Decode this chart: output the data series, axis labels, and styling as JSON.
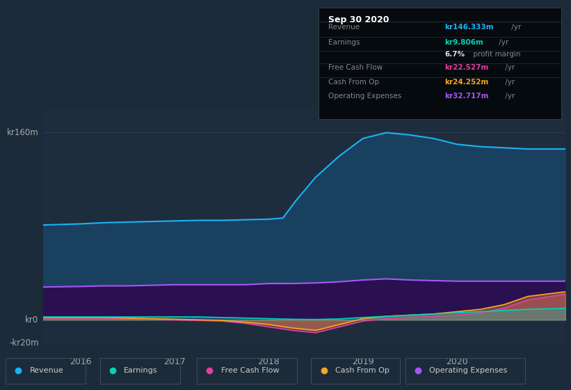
{
  "background_color": "#1c2b3a",
  "plot_bg_color": "#1e2d3d",
  "grid_color": "#2a3f55",
  "ylim": [
    -20,
    180
  ],
  "xlim": [
    2015.6,
    2021.15
  ],
  "xticks": [
    2016,
    2017,
    2018,
    2019,
    2020
  ],
  "ylabels": [
    {
      "y": 160,
      "text": "kr160m"
    },
    {
      "y": 0,
      "text": "kr0"
    },
    {
      "y": -20,
      "text": "-kr20m"
    }
  ],
  "series": {
    "Revenue": {
      "line_color": "#1ab3f5",
      "fill_color": "#1a4060",
      "x": [
        2015.6,
        2016.0,
        2016.25,
        2016.5,
        2016.75,
        2017.0,
        2017.25,
        2017.5,
        2017.75,
        2018.0,
        2018.15,
        2018.3,
        2018.5,
        2018.75,
        2019.0,
        2019.25,
        2019.5,
        2019.75,
        2020.0,
        2020.25,
        2020.5,
        2020.75,
        2021.15
      ],
      "y": [
        81,
        82,
        83,
        83.5,
        84,
        84.5,
        85,
        85,
        85.5,
        86,
        87,
        103,
        122,
        140,
        155,
        160,
        158,
        155,
        150,
        148,
        147,
        146,
        146
      ]
    },
    "OperatingExpenses": {
      "line_color": "#a855f7",
      "fill_color": "#2a1050",
      "x": [
        2015.6,
        2016.0,
        2016.25,
        2016.5,
        2016.75,
        2017.0,
        2017.25,
        2017.5,
        2017.75,
        2018.0,
        2018.25,
        2018.5,
        2018.75,
        2019.0,
        2019.25,
        2019.5,
        2019.75,
        2020.0,
        2020.25,
        2020.5,
        2020.75,
        2021.15
      ],
      "y": [
        28,
        28.5,
        29,
        29,
        29.5,
        30,
        30,
        30,
        30,
        31,
        31,
        31.5,
        32.5,
        34,
        35,
        34,
        33.5,
        33,
        33,
        33,
        33,
        33
      ]
    },
    "FreeCashFlow": {
      "line_color": "#e040a0",
      "fill_color": "#e040a040",
      "x": [
        2015.6,
        2016.0,
        2016.25,
        2016.5,
        2016.75,
        2017.0,
        2017.25,
        2017.5,
        2017.75,
        2018.0,
        2018.25,
        2018.5,
        2018.75,
        2019.0,
        2019.25,
        2019.5,
        2019.75,
        2020.0,
        2020.25,
        2020.5,
        2020.75,
        2021.15
      ],
      "y": [
        1.5,
        1.5,
        1.5,
        1,
        0.5,
        0,
        -0.5,
        -1,
        -3,
        -6,
        -9,
        -11,
        -6,
        -1,
        1,
        2,
        3,
        4,
        6,
        10,
        17,
        22
      ]
    },
    "CashFromOp": {
      "line_color": "#f5a623",
      "fill_color": "#f5a62340",
      "x": [
        2015.6,
        2016.0,
        2016.25,
        2016.5,
        2016.75,
        2017.0,
        2017.25,
        2017.5,
        2017.75,
        2018.0,
        2018.25,
        2018.5,
        2018.75,
        2019.0,
        2019.25,
        2019.5,
        2019.75,
        2020.0,
        2020.25,
        2020.5,
        2020.75,
        2021.15
      ],
      "y": [
        2,
        2,
        2,
        1.5,
        1,
        0.5,
        0,
        -0.5,
        -2,
        -4,
        -7,
        -9,
        -4,
        1,
        3,
        4,
        5,
        7,
        9,
        13,
        20,
        24
      ]
    },
    "Earnings": {
      "line_color": "#00d4b4",
      "fill_color": "#00d4b430",
      "x": [
        2015.6,
        2016.0,
        2016.25,
        2016.5,
        2016.75,
        2017.0,
        2017.25,
        2017.5,
        2017.75,
        2018.0,
        2018.25,
        2018.5,
        2018.75,
        2019.0,
        2019.25,
        2019.5,
        2019.75,
        2020.0,
        2020.25,
        2020.5,
        2020.75,
        2021.15
      ],
      "y": [
        2.5,
        2.5,
        2.5,
        2.5,
        2.5,
        2.5,
        2.5,
        2,
        1.5,
        1,
        0.5,
        0.3,
        0.8,
        2,
        3,
        4,
        5,
        6,
        7,
        8,
        9,
        9.8
      ]
    }
  },
  "tooltip": {
    "title": "Sep 30 2020",
    "rows": [
      {
        "label": "Revenue",
        "value": "kr146.333m",
        "suffix": " /yr",
        "value_color": "#1ab3f5",
        "has_sep_below": true
      },
      {
        "label": "Earnings",
        "value": "kr9.806m",
        "suffix": " /yr",
        "value_color": "#00d4b4",
        "has_sep_below": false
      },
      {
        "label": "",
        "value": "6.7%",
        "suffix": " profit margin",
        "value_color": "#dddddd",
        "has_sep_below": true
      },
      {
        "label": "Free Cash Flow",
        "value": "kr22.527m",
        "suffix": " /yr",
        "value_color": "#e040a0",
        "has_sep_below": true
      },
      {
        "label": "Cash From Op",
        "value": "kr24.252m",
        "suffix": " /yr",
        "value_color": "#f5a623",
        "has_sep_below": true
      },
      {
        "label": "Operating Expenses",
        "value": "kr32.717m",
        "suffix": " /yr",
        "value_color": "#a855f7",
        "has_sep_below": false
      }
    ]
  },
  "legend": [
    {
      "label": "Revenue",
      "color": "#1ab3f5"
    },
    {
      "label": "Earnings",
      "color": "#00d4b4"
    },
    {
      "label": "Free Cash Flow",
      "color": "#e040a0"
    },
    {
      "label": "Cash From Op",
      "color": "#f5a623"
    },
    {
      "label": "Operating Expenses",
      "color": "#a855f7"
    }
  ]
}
